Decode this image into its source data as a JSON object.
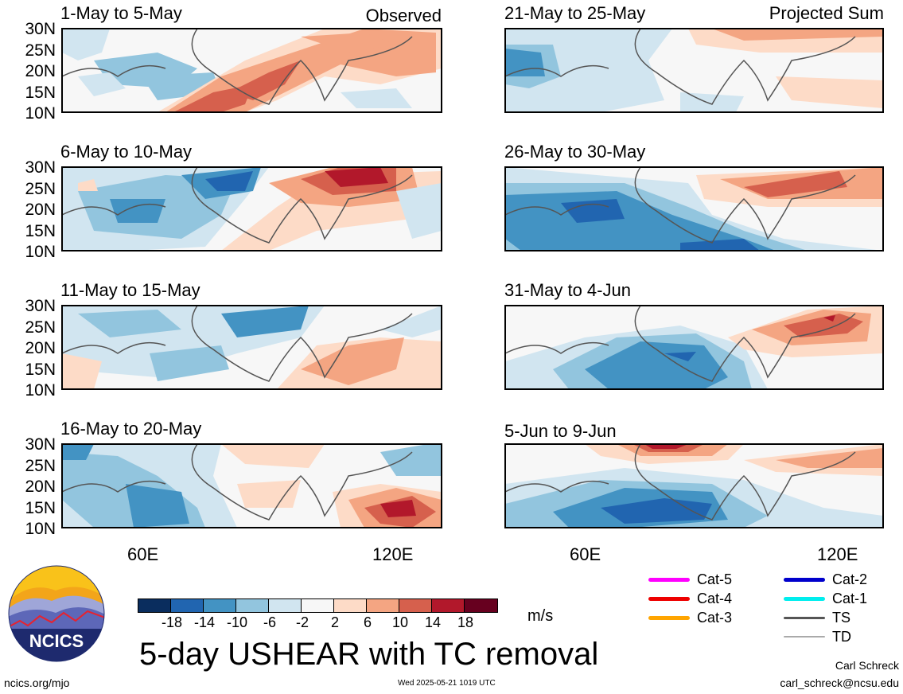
{
  "panels_left_tag": "Observed",
  "panels_right_tag": "Projected Sum",
  "panels": [
    {
      "title": "1-May to 5-May"
    },
    {
      "title": "21-May to 25-May"
    },
    {
      "title": "6-May to 10-May"
    },
    {
      "title": "26-May to 30-May"
    },
    {
      "title": "11-May to 15-May"
    },
    {
      "title": "31-May to 4-Jun"
    },
    {
      "title": "16-May to 20-May"
    },
    {
      "title": "5-Jun to 9-Jun"
    }
  ],
  "lat_labels": [
    "30N",
    "25N",
    "20N",
    "15N",
    "10N"
  ],
  "lon_labels": [
    "60E",
    "120E"
  ],
  "colorbar": {
    "labels": [
      "-18",
      "-14",
      "-10",
      "-6",
      "-2",
      "2",
      "6",
      "10",
      "14",
      "18"
    ],
    "colors": [
      "#0a2d5e",
      "#2165b0",
      "#4393c3",
      "#92c5de",
      "#d1e5f0",
      "#f7f7f7",
      "#fddbc7",
      "#f4a582",
      "#d6604d",
      "#b2182b",
      "#67001f"
    ],
    "units": "m/s"
  },
  "title": "5-day USHEAR with TC removal",
  "legend": [
    {
      "label": "Cat-5",
      "color": "#ff00ff"
    },
    {
      "label": "Cat-4",
      "color": "#ee0000"
    },
    {
      "label": "Cat-3",
      "color": "#ffa500"
    },
    {
      "label": "Cat-2",
      "color": "#0000cc"
    },
    {
      "label": "Cat-1",
      "color": "#00eeee"
    },
    {
      "label": "TS",
      "color": "#555555"
    },
    {
      "label": "TD",
      "color": "#aaaaaa"
    }
  ],
  "logo_text": "NCICS",
  "footer_url": "ncics.org/mjo",
  "footer_timestamp": "Wed 2025-05-21 1019 UTC",
  "credit_name": "Carl Schreck",
  "credit_email": "carl_schreck@ncsu.edu"
}
